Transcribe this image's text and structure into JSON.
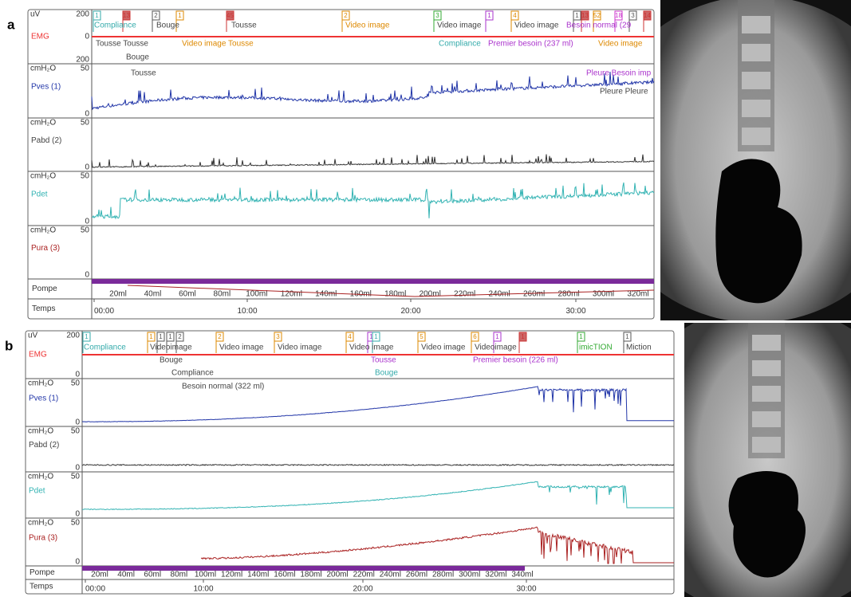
{
  "panels": [
    {
      "label": "a",
      "channels": [
        {
          "unit": "uV",
          "name": "EMG",
          "ticks": [
            "200",
            "0",
            "200"
          ]
        },
        {
          "unit": "cmH₂O",
          "name": "Pves (1)",
          "ticks": [
            "50",
            "0"
          ]
        },
        {
          "unit": "cmH₂O",
          "name": "Pabd (2)",
          "ticks": [
            "50",
            "0"
          ]
        },
        {
          "unit": "cmH₂O",
          "name": "Pdet",
          "ticks": [
            "50",
            "0"
          ]
        },
        {
          "unit": "cmH₂O",
          "name": "Pura (3)",
          "ticks": [
            "50",
            "0"
          ]
        }
      ],
      "pump": {
        "label": "Pompe",
        "volumes": [
          "20ml",
          "40ml",
          "60ml",
          "80ml",
          "100ml",
          "120ml",
          "140ml",
          "160ml",
          "180ml",
          "200ml",
          "220ml",
          "240ml",
          "260ml",
          "280ml",
          "300ml",
          "320ml"
        ]
      },
      "time": {
        "label": "Temps",
        "ticks": [
          "00:00",
          "10:00",
          "20:00",
          "30:00"
        ]
      },
      "markers": [
        "1",
        "13",
        "2",
        "1",
        "45",
        "2",
        "3",
        "1",
        "4",
        "1",
        "13",
        "52",
        "18",
        "3",
        "14"
      ],
      "annotations": [
        "Compliance",
        "Bouge",
        "Tousse",
        "Video image",
        "Video image",
        "Video image",
        "Besoin normal (29",
        "Tousse Tousse",
        "Video image Tousse",
        "Compliance",
        "Premier besoin (237 ml)",
        "Video image",
        "Bouge",
        "Tousse",
        "Pleure Besoin imp",
        "Pleure Pleure"
      ]
    },
    {
      "label": "b",
      "channels": [
        {
          "unit": "uV",
          "name": "EMG",
          "ticks": [
            "200",
            "0"
          ]
        },
        {
          "unit": "cmH₂O",
          "name": "Pves (1)",
          "ticks": [
            "50",
            "0"
          ]
        },
        {
          "unit": "cmH₂O",
          "name": "Pabd (2)",
          "ticks": [
            "50",
            "0"
          ]
        },
        {
          "unit": "cmH₂O",
          "name": "Pdet",
          "ticks": [
            "50",
            "0"
          ]
        },
        {
          "unit": "cmH₂O",
          "name": "Pura (3)",
          "ticks": [
            "50",
            "0"
          ]
        }
      ],
      "pump": {
        "label": "Pompe",
        "volumes": [
          "20ml",
          "40ml",
          "60ml",
          "80ml",
          "100ml",
          "120ml",
          "140ml",
          "160ml",
          "180ml",
          "200ml",
          "220ml",
          "240ml",
          "260ml",
          "280ml",
          "300ml",
          "320ml",
          "340ml"
        ]
      },
      "time": {
        "label": "Temps",
        "ticks": [
          "00:00",
          "10:00",
          "20:00",
          "30:00"
        ]
      },
      "markers": [
        "1",
        "1",
        "1",
        "1",
        "2",
        "2",
        "3",
        "4",
        "1",
        "1",
        "5",
        "6",
        "1",
        "1",
        "1",
        "1"
      ],
      "annotations": [
        "Compliance",
        "Videoimage",
        "Video image",
        "Video image",
        "Video image",
        "Video image",
        "Videoimage",
        "imicTION",
        "Miction",
        "Bouge",
        "Tousse",
        "Bouge",
        "Premier besoin (226 ml)",
        "Compliance",
        "Besoin normal (322 ml)"
      ]
    }
  ]
}
